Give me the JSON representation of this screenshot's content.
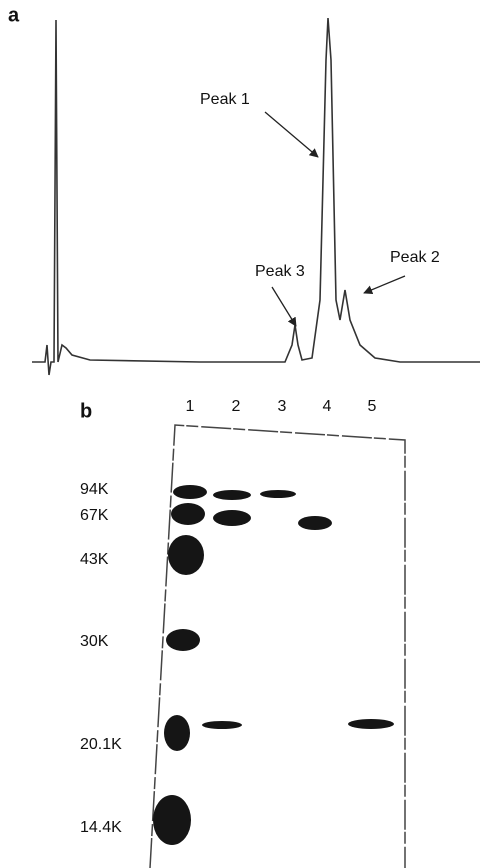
{
  "panel_a": {
    "label": "a",
    "peaks": [
      "Peak 1",
      "Peak 2",
      "Peak 3"
    ]
  },
  "panel_b": {
    "label": "b",
    "lanes": [
      "1",
      "2",
      "3",
      "4",
      "5"
    ],
    "markers": [
      "94K",
      "67K",
      "43K",
      "30K",
      "20.1K",
      "14.4K"
    ]
  }
}
